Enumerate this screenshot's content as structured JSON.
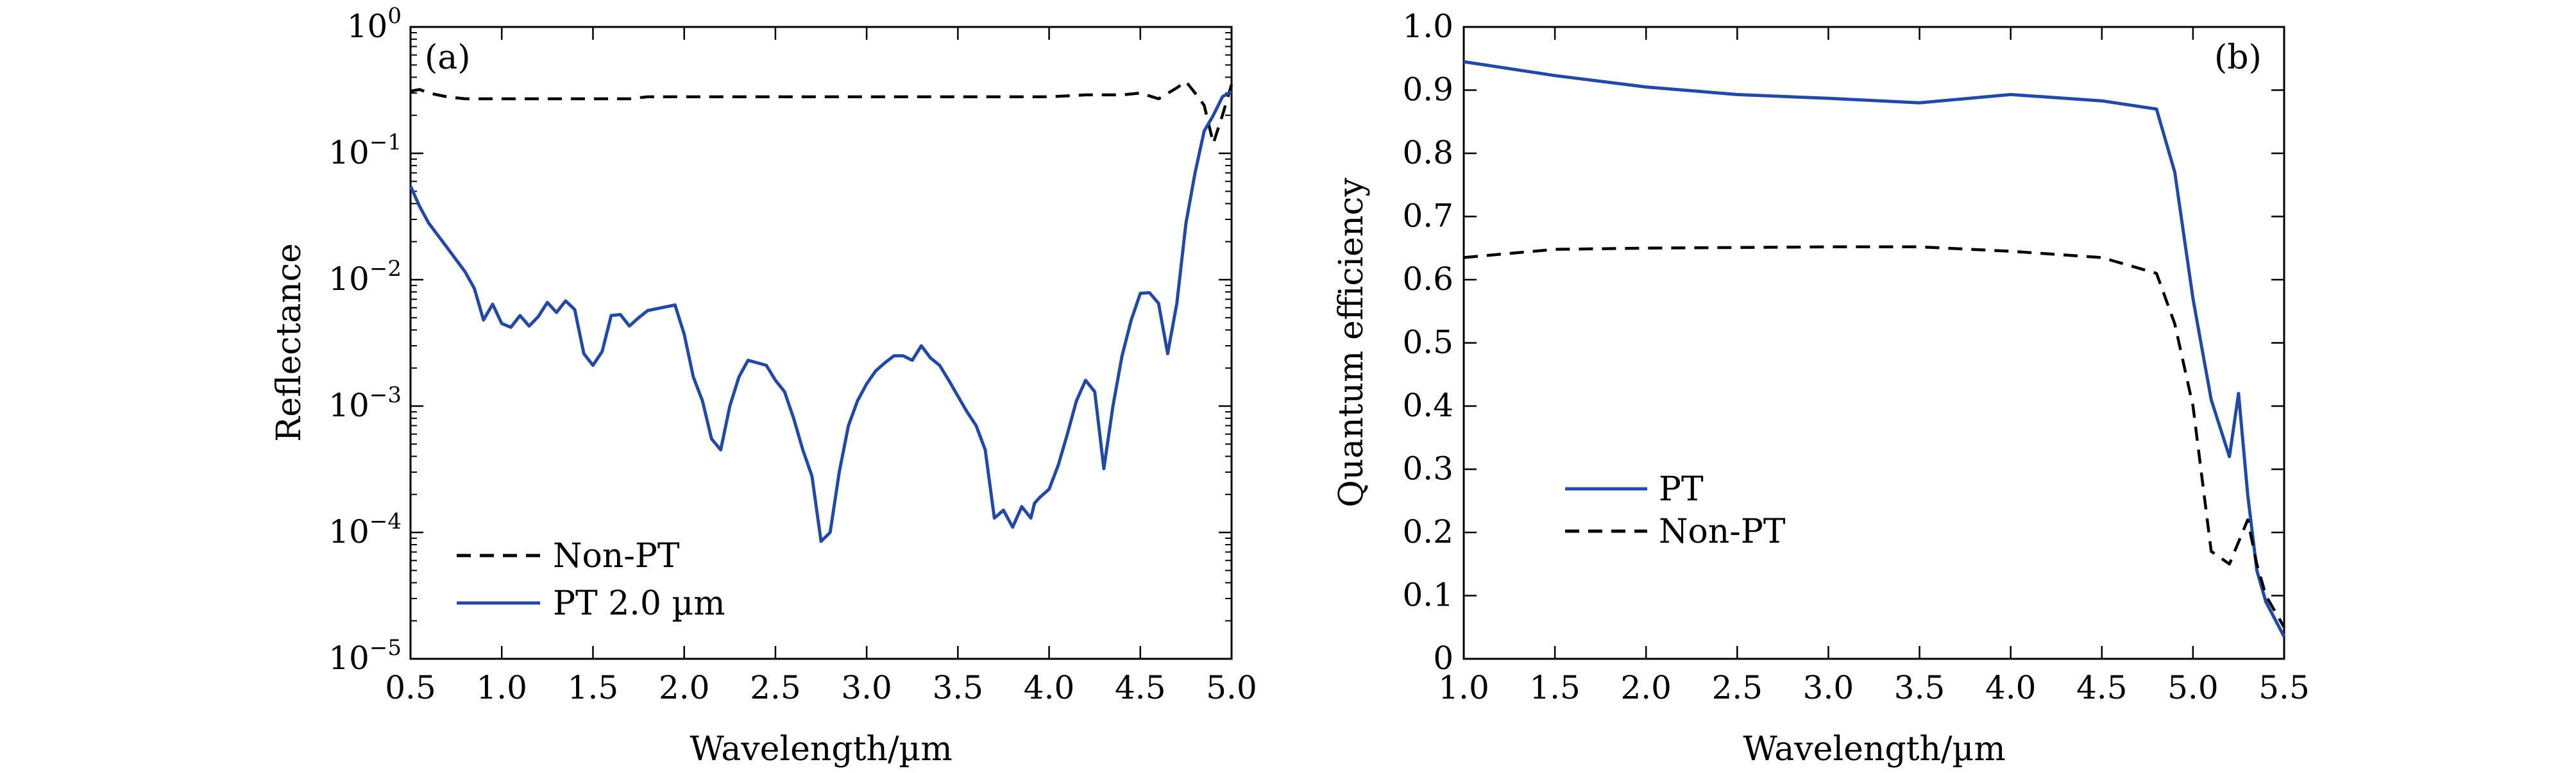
{
  "chart_data": [
    {
      "type": "line",
      "panel_label": "(a)",
      "xlabel": "Wavelength/µm",
      "ylabel": "Reflectance",
      "xlim": [
        0.5,
        5.0
      ],
      "xticks": [
        "0.5",
        "1.0",
        "1.5",
        "2.0",
        "2.5",
        "3.0",
        "3.5",
        "4.0",
        "4.5",
        "5.0"
      ],
      "yscale": "log",
      "ylim": [
        1e-05,
        1
      ],
      "yticks": [
        {
          "base": "10",
          "exp": "0"
        },
        {
          "base": "10",
          "exp": "−1"
        },
        {
          "base": "10",
          "exp": "−2"
        },
        {
          "base": "10",
          "exp": "−3"
        },
        {
          "base": "10",
          "exp": "−4"
        },
        {
          "base": "10",
          "exp": "−5"
        }
      ],
      "legend_position": "bottom-left",
      "series": [
        {
          "name": "Non-PT",
          "style": "dashed",
          "color": "#000000",
          "x": [
            0.5,
            0.55,
            0.6,
            0.7,
            0.8,
            1.0,
            1.5,
            1.7,
            1.8,
            2.0,
            2.5,
            3.0,
            3.5,
            4.0,
            4.2,
            4.4,
            4.5,
            4.6,
            4.7,
            4.75,
            4.8,
            4.85,
            4.9,
            4.95,
            5.0
          ],
          "y": [
            0.31,
            0.32,
            0.3,
            0.28,
            0.27,
            0.27,
            0.27,
            0.27,
            0.28,
            0.28,
            0.28,
            0.28,
            0.28,
            0.28,
            0.29,
            0.29,
            0.3,
            0.27,
            0.33,
            0.37,
            0.3,
            0.24,
            0.12,
            0.2,
            0.35
          ]
        },
        {
          "name": "PT 2.0 µm",
          "style": "solid",
          "color": "#2449a1",
          "x": [
            0.5,
            0.55,
            0.6,
            0.7,
            0.8,
            0.85,
            0.9,
            0.95,
            1.0,
            1.05,
            1.1,
            1.15,
            1.2,
            1.25,
            1.3,
            1.35,
            1.4,
            1.45,
            1.5,
            1.55,
            1.6,
            1.65,
            1.7,
            1.75,
            1.8,
            1.9,
            1.95,
            2.0,
            2.05,
            2.1,
            2.15,
            2.2,
            2.25,
            2.3,
            2.35,
            2.4,
            2.45,
            2.5,
            2.55,
            2.6,
            2.65,
            2.7,
            2.75,
            2.8,
            2.85,
            2.9,
            2.95,
            3.0,
            3.05,
            3.1,
            3.15,
            3.2,
            3.25,
            3.3,
            3.35,
            3.4,
            3.45,
            3.5,
            3.55,
            3.6,
            3.65,
            3.7,
            3.75,
            3.8,
            3.85,
            3.9,
            3.92,
            3.95,
            4.0,
            4.05,
            4.1,
            4.15,
            4.2,
            4.25,
            4.3,
            4.35,
            4.4,
            4.45,
            4.5,
            4.55,
            4.6,
            4.65,
            4.7,
            4.75,
            4.8,
            4.85,
            4.9,
            4.95,
            5.0
          ],
          "y": [
            0.055,
            0.038,
            0.028,
            0.018,
            0.0115,
            0.0085,
            0.0048,
            0.0064,
            0.0045,
            0.0042,
            0.0052,
            0.0043,
            0.0051,
            0.0066,
            0.0055,
            0.0068,
            0.0058,
            0.0026,
            0.0021,
            0.0027,
            0.0052,
            0.0053,
            0.0043,
            0.005,
            0.0057,
            0.0061,
            0.0063,
            0.0037,
            0.0017,
            0.0011,
            0.00055,
            0.00045,
            0.001,
            0.0017,
            0.0023,
            0.0022,
            0.0021,
            0.0016,
            0.0013,
            0.0008,
            0.00045,
            0.00028,
            8.5e-05,
            0.0001,
            0.0003,
            0.0007,
            0.0011,
            0.0015,
            0.0019,
            0.0022,
            0.0025,
            0.0025,
            0.0023,
            0.003,
            0.0024,
            0.0021,
            0.0016,
            0.0012,
            0.0009,
            0.0007,
            0.00045,
            0.00013,
            0.00015,
            0.00011,
            0.00016,
            0.00013,
            0.00017,
            0.00019,
            0.00022,
            0.00034,
            0.0006,
            0.0011,
            0.0016,
            0.0013,
            0.00032,
            0.001,
            0.0025,
            0.0048,
            0.0078,
            0.0079,
            0.0065,
            0.0026,
            0.0065,
            0.028,
            0.07,
            0.15,
            0.2,
            0.28,
            0.31
          ]
        }
      ]
    },
    {
      "type": "line",
      "panel_label": "(b)",
      "xlabel": "Wavelength/µm",
      "ylabel": "Quantum efficiency",
      "xlim": [
        1.0,
        5.5
      ],
      "xticks": [
        "1.0",
        "1.5",
        "2.0",
        "2.5",
        "3.0",
        "3.5",
        "4.0",
        "4.5",
        "5.0",
        "5.5"
      ],
      "ylim": [
        0,
        1.0
      ],
      "yticks": [
        "0",
        "0.1",
        "0.2",
        "0.3",
        "0.4",
        "0.5",
        "0.6",
        "0.7",
        "0.8",
        "0.9",
        "1.0"
      ],
      "legend_position": "middle-left",
      "series": [
        {
          "name": "PT",
          "style": "solid",
          "color": "#2449a1",
          "x": [
            1.0,
            1.5,
            2.0,
            2.5,
            3.0,
            3.5,
            4.0,
            4.5,
            4.8,
            4.9,
            5.0,
            5.1,
            5.2,
            5.25,
            5.3,
            5.35,
            5.4,
            5.5
          ],
          "y": [
            0.945,
            0.923,
            0.905,
            0.893,
            0.887,
            0.88,
            0.893,
            0.883,
            0.87,
            0.77,
            0.57,
            0.41,
            0.32,
            0.42,
            0.26,
            0.14,
            0.09,
            0.035
          ]
        },
        {
          "name": "Non-PT",
          "style": "dashed",
          "color": "#000000",
          "x": [
            1.0,
            1.5,
            2.0,
            2.5,
            3.0,
            3.5,
            4.0,
            4.5,
            4.8,
            4.9,
            5.0,
            5.1,
            5.2,
            5.3,
            5.35,
            5.4,
            5.5
          ],
          "y": [
            0.635,
            0.648,
            0.65,
            0.651,
            0.652,
            0.652,
            0.645,
            0.635,
            0.61,
            0.53,
            0.4,
            0.17,
            0.15,
            0.22,
            0.15,
            0.1,
            0.05
          ]
        }
      ]
    }
  ]
}
